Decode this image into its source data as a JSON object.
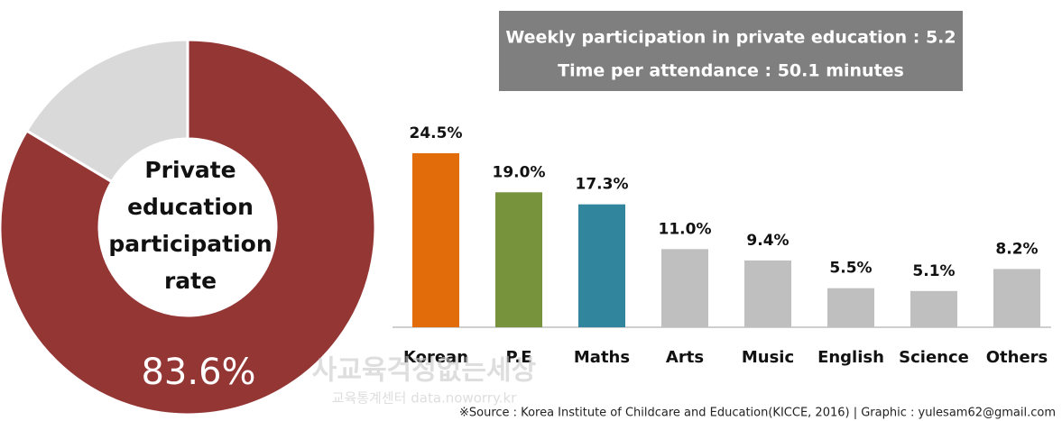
{
  "chart_data": [
    {
      "type": "pie",
      "center_label": [
        "Private",
        "education",
        "participation",
        "rate"
      ],
      "values": [
        83.6,
        16.4
      ],
      "value_labels": [
        "83.6%",
        null
      ],
      "colors": [
        "#943634",
        "#d9d9d9"
      ]
    },
    {
      "type": "bar",
      "categories": [
        "Korean",
        "P.E",
        "Maths",
        "Arts",
        "Music",
        "English",
        "Science",
        "Others"
      ],
      "values": [
        24.5,
        19.0,
        17.3,
        11.0,
        9.4,
        5.5,
        5.1,
        8.2
      ],
      "value_labels": [
        "24.5%",
        "19.0%",
        "17.3%",
        "11.0%",
        "9.4%",
        "5.5%",
        "5.1%",
        "8.2%"
      ],
      "colors": [
        "#e36c0a",
        "#77933c",
        "#31859c",
        "#bfbfbf",
        "#bfbfbf",
        "#bfbfbf",
        "#bfbfbf",
        "#bfbfbf"
      ]
    }
  ],
  "info_box": [
    "Weekly participation in private education : 5.2",
    "Time per attendance : 50.1 minutes"
  ],
  "watermark": [
    "사교육걱정없는세상",
    "교육통계센터 data.noworry.kr"
  ],
  "source": "※Source : Korea Institute of Childcare and Education(KICCE, 2016) | Graphic : yulesam62@gmail.com"
}
